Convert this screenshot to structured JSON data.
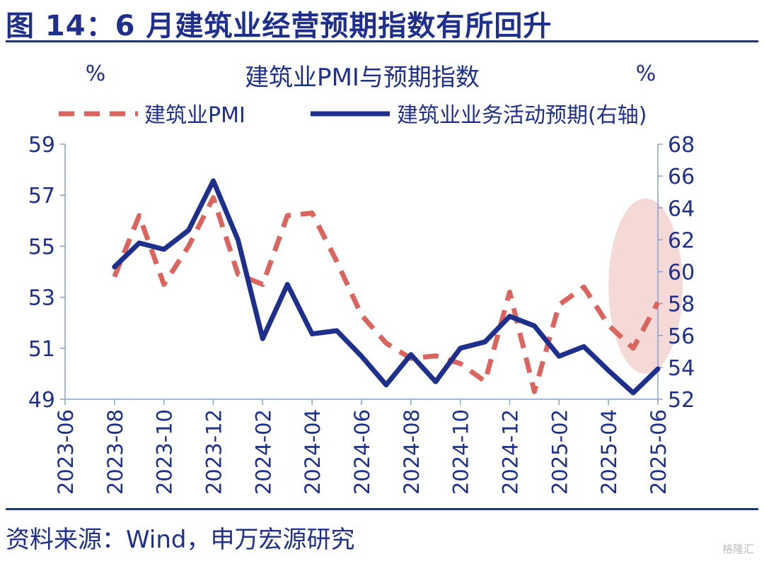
{
  "figure": {
    "title": "图 14：6 月建筑业经营预期指数有所回升",
    "source": "资料来源：Wind，申万宏源研究",
    "watermark": "格隆汇"
  },
  "colors": {
    "primary": "#1e2f8c",
    "pmi": "#d9655e",
    "highlight": "#f2d2d0",
    "axis": "#8aa0c8"
  },
  "chart_data": {
    "type": "line",
    "title": "建筑业PMI与预期指数",
    "left_unit": "%",
    "right_unit": "%",
    "legend_position": "top",
    "grid": false,
    "x": [
      "2023-06",
      "2023-08",
      "2023-10",
      "2023-12",
      "2024-02",
      "2024-04",
      "2024-06",
      "2024-08",
      "2024-10",
      "2024-12",
      "2025-02",
      "2025-04",
      "2025-06"
    ],
    "x_ticks": [
      "2023-06",
      "2023-08",
      "2023-10",
      "2023-12",
      "2024-02",
      "2024-04",
      "2024-06",
      "2024-08",
      "2024-10",
      "2024-12",
      "2025-02",
      "2025-04",
      "2025-06"
    ],
    "y_left": {
      "min": 49,
      "max": 59,
      "ticks": [
        49,
        51,
        53,
        55,
        57,
        59
      ]
    },
    "y_right": {
      "min": 52,
      "max": 68,
      "ticks": [
        52,
        54,
        56,
        58,
        60,
        62,
        64,
        66,
        68
      ]
    },
    "series": [
      {
        "name": "建筑业PMI",
        "axis": "left",
        "style": "dashed",
        "points": [
          [
            "2023-08",
            53.8
          ],
          [
            "2023-09",
            56.2
          ],
          [
            "2023-10",
            53.5
          ],
          [
            "2023-11",
            55.0
          ],
          [
            "2023-12",
            56.9
          ],
          [
            "2024-01",
            53.9
          ],
          [
            "2024-02",
            53.5
          ],
          [
            "2024-03",
            56.2
          ],
          [
            "2024-04",
            56.3
          ],
          [
            "2024-05",
            54.4
          ],
          [
            "2024-06",
            52.3
          ],
          [
            "2024-07",
            51.2
          ],
          [
            "2024-08",
            50.6
          ],
          [
            "2024-09",
            50.7
          ],
          [
            "2024-10",
            50.4
          ],
          [
            "2024-11",
            49.7
          ],
          [
            "2024-12",
            53.2
          ],
          [
            "2025-01",
            49.3
          ],
          [
            "2025-02",
            52.7
          ],
          [
            "2025-03",
            53.4
          ],
          [
            "2025-04",
            51.9
          ],
          [
            "2025-05",
            51.0
          ],
          [
            "2025-06",
            52.8
          ]
        ]
      },
      {
        "name": "建筑业业务活动预期(右轴)",
        "axis": "right",
        "style": "solid",
        "points": [
          [
            "2023-08",
            60.3
          ],
          [
            "2023-09",
            61.8
          ],
          [
            "2023-10",
            61.4
          ],
          [
            "2023-11",
            62.6
          ],
          [
            "2023-12",
            65.7
          ],
          [
            "2024-01",
            62.0
          ],
          [
            "2024-02",
            55.8
          ],
          [
            "2024-03",
            59.2
          ],
          [
            "2024-04",
            56.1
          ],
          [
            "2024-05",
            56.3
          ],
          [
            "2024-06",
            54.7
          ],
          [
            "2024-07",
            52.9
          ],
          [
            "2024-08",
            54.8
          ],
          [
            "2024-09",
            53.1
          ],
          [
            "2024-10",
            55.2
          ],
          [
            "2024-11",
            55.6
          ],
          [
            "2024-12",
            57.2
          ],
          [
            "2025-01",
            56.6
          ],
          [
            "2025-02",
            54.7
          ],
          [
            "2025-03",
            55.3
          ],
          [
            "2025-04",
            53.8
          ],
          [
            "2025-05",
            52.4
          ],
          [
            "2025-06",
            53.9
          ]
        ]
      }
    ],
    "highlight": {
      "x_from": "2025-04",
      "x_to": "2025-07",
      "y_from": 53.6,
      "y_to": 64.6,
      "axis": "right",
      "shape": "ellipse"
    }
  }
}
